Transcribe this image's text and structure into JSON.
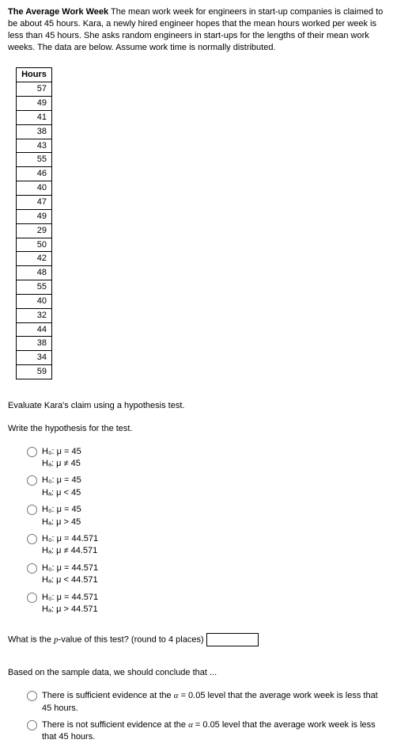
{
  "problem": {
    "title": "The Average Work Week",
    "text": " The mean work week for engineers in start-up companies is claimed to be about 45 hours. Kara, a newly hired engineer hopes that the mean hours worked per week is less than 45 hours. She asks random engineers in start-ups for the lengths of their mean work weeks. The data are below. Assume work time is normally distributed."
  },
  "table": {
    "header": "Hours",
    "rows": [
      "57",
      "49",
      "41",
      "38",
      "43",
      "55",
      "46",
      "40",
      "47",
      "49",
      "29",
      "50",
      "42",
      "48",
      "55",
      "40",
      "32",
      "44",
      "38",
      "34",
      "59"
    ]
  },
  "q1": {
    "intro": "Evaluate Kara's claim using a hypothesis test.",
    "prompt": "Write the hypothesis for the test.",
    "options": [
      {
        "h0": "H₀: μ = 45",
        "ha": "Hₐ: μ ≠ 45"
      },
      {
        "h0": "H₀: μ = 45",
        "ha": "Hₐ: μ < 45"
      },
      {
        "h0": "H₀: μ = 45",
        "ha": "Hₐ: μ > 45"
      },
      {
        "h0": "H₀: μ = 44.571",
        "ha": "Hₐ: μ ≠ 44.571"
      },
      {
        "h0": "H₀: μ = 44.571",
        "ha": "Hₐ: μ < 44.571"
      },
      {
        "h0": "H₀: μ = 44.571",
        "ha": "Hₐ: μ > 44.571"
      }
    ]
  },
  "q2": {
    "label_before": "What is the ",
    "pword": "p",
    "label_after": "-value of this test? (round to 4 places)"
  },
  "q3": {
    "prompt": "Based on the sample data, we should conclude that ...",
    "options": [
      "There is sufficient evidence at the α = 0.05 level that the average work week is less that 45 hours.",
      "There is not sufficient evidence at the α = 0.05 level that the average work week is less that 45 hours."
    ]
  }
}
